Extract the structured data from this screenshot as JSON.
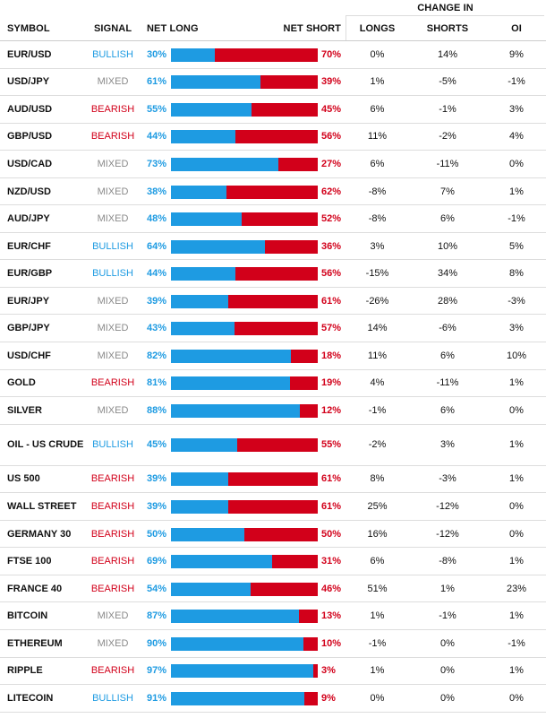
{
  "header": {
    "symbol": "SYMBOL",
    "signal": "SIGNAL",
    "net_long": "NET LONG",
    "net_short": "NET SHORT",
    "change_in": "CHANGE IN",
    "longs": "LONGS",
    "shorts": "SHORTS",
    "oi": "OI"
  },
  "colors": {
    "long": "#1e9be2",
    "short": "#d2001a",
    "mixed": "#8a8a8a"
  },
  "rows": [
    {
      "symbol": "EUR/USD",
      "signal": "BULLISH",
      "net_long": 30,
      "net_short": 70,
      "longs": "0%",
      "shorts": "14%",
      "oi": "9%"
    },
    {
      "symbol": "USD/JPY",
      "signal": "MIXED",
      "net_long": 61,
      "net_short": 39,
      "longs": "1%",
      "shorts": "-5%",
      "oi": "-1%"
    },
    {
      "symbol": "AUD/USD",
      "signal": "BEARISH",
      "net_long": 55,
      "net_short": 45,
      "longs": "6%",
      "shorts": "-1%",
      "oi": "3%"
    },
    {
      "symbol": "GBP/USD",
      "signal": "BEARISH",
      "net_long": 44,
      "net_short": 56,
      "longs": "11%",
      "shorts": "-2%",
      "oi": "4%"
    },
    {
      "symbol": "USD/CAD",
      "signal": "MIXED",
      "net_long": 73,
      "net_short": 27,
      "longs": "6%",
      "shorts": "-11%",
      "oi": "0%"
    },
    {
      "symbol": "NZD/USD",
      "signal": "MIXED",
      "net_long": 38,
      "net_short": 62,
      "longs": "-8%",
      "shorts": "7%",
      "oi": "1%"
    },
    {
      "symbol": "AUD/JPY",
      "signal": "MIXED",
      "net_long": 48,
      "net_short": 52,
      "longs": "-8%",
      "shorts": "6%",
      "oi": "-1%"
    },
    {
      "symbol": "EUR/CHF",
      "signal": "BULLISH",
      "net_long": 64,
      "net_short": 36,
      "longs": "3%",
      "shorts": "10%",
      "oi": "5%"
    },
    {
      "symbol": "EUR/GBP",
      "signal": "BULLISH",
      "net_long": 44,
      "net_short": 56,
      "longs": "-15%",
      "shorts": "34%",
      "oi": "8%"
    },
    {
      "symbol": "EUR/JPY",
      "signal": "MIXED",
      "net_long": 39,
      "net_short": 61,
      "longs": "-26%",
      "shorts": "28%",
      "oi": "-3%"
    },
    {
      "symbol": "GBP/JPY",
      "signal": "MIXED",
      "net_long": 43,
      "net_short": 57,
      "longs": "14%",
      "shorts": "-6%",
      "oi": "3%"
    },
    {
      "symbol": "USD/CHF",
      "signal": "MIXED",
      "net_long": 82,
      "net_short": 18,
      "longs": "11%",
      "shorts": "6%",
      "oi": "10%"
    },
    {
      "symbol": "GOLD",
      "signal": "BEARISH",
      "net_long": 81,
      "net_short": 19,
      "longs": "4%",
      "shorts": "-11%",
      "oi": "1%"
    },
    {
      "symbol": "SILVER",
      "signal": "MIXED",
      "net_long": 88,
      "net_short": 12,
      "longs": "-1%",
      "shorts": "6%",
      "oi": "0%"
    },
    {
      "symbol": "OIL - US CRUDE",
      "signal": "BULLISH",
      "net_long": 45,
      "net_short": 55,
      "longs": "-2%",
      "shorts": "3%",
      "oi": "1%"
    },
    {
      "symbol": "US 500",
      "signal": "BEARISH",
      "net_long": 39,
      "net_short": 61,
      "longs": "8%",
      "shorts": "-3%",
      "oi": "1%"
    },
    {
      "symbol": "WALL STREET",
      "signal": "BEARISH",
      "net_long": 39,
      "net_short": 61,
      "longs": "25%",
      "shorts": "-12%",
      "oi": "0%"
    },
    {
      "symbol": "GERMANY 30",
      "signal": "BEARISH",
      "net_long": 50,
      "net_short": 50,
      "longs": "16%",
      "shorts": "-12%",
      "oi": "0%"
    },
    {
      "symbol": "FTSE 100",
      "signal": "BEARISH",
      "net_long": 69,
      "net_short": 31,
      "longs": "6%",
      "shorts": "-8%",
      "oi": "1%"
    },
    {
      "symbol": "FRANCE 40",
      "signal": "BEARISH",
      "net_long": 54,
      "net_short": 46,
      "longs": "51%",
      "shorts": "1%",
      "oi": "23%"
    },
    {
      "symbol": "BITCOIN",
      "signal": "MIXED",
      "net_long": 87,
      "net_short": 13,
      "longs": "1%",
      "shorts": "-1%",
      "oi": "1%"
    },
    {
      "symbol": "ETHEREUM",
      "signal": "MIXED",
      "net_long": 90,
      "net_short": 10,
      "longs": "-1%",
      "shorts": "0%",
      "oi": "-1%"
    },
    {
      "symbol": "RIPPLE",
      "signal": "BEARISH",
      "net_long": 97,
      "net_short": 3,
      "longs": "1%",
      "shorts": "0%",
      "oi": "1%"
    },
    {
      "symbol": "LITECOIN",
      "signal": "BULLISH",
      "net_long": 91,
      "net_short": 9,
      "longs": "0%",
      "shorts": "0%",
      "oi": "0%"
    }
  ]
}
